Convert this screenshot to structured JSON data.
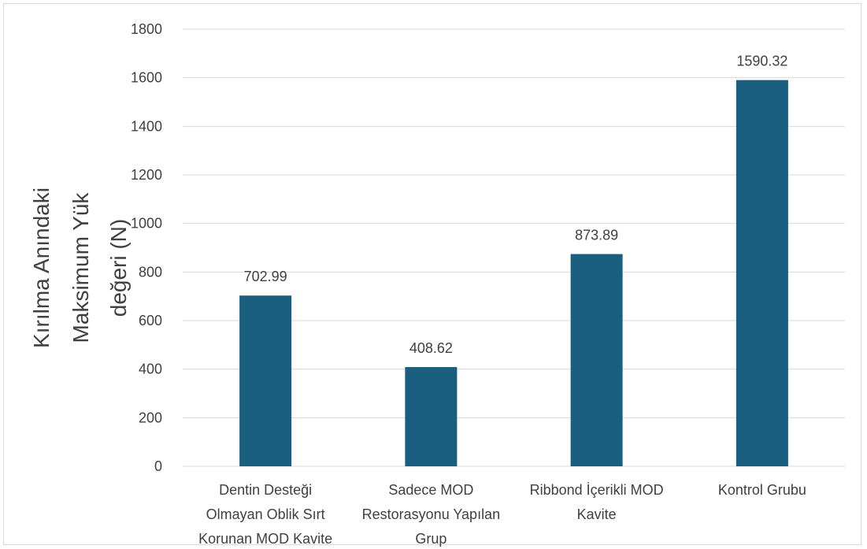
{
  "chart_data": {
    "type": "bar",
    "categories": [
      [
        "Dentin Desteği",
        "Olmayan Oblik Sırt",
        "Korunan MOD Kavite"
      ],
      [
        "Sadece MOD",
        "Restorasyonu Yapılan",
        "Grup"
      ],
      [
        "Ribbond İçerikli MOD",
        "Kavite"
      ],
      [
        "Kontrol Grubu"
      ]
    ],
    "values": [
      702.99,
      408.62,
      873.89,
      1590.32
    ],
    "data_labels": [
      "702.99",
      "408.62",
      "873.89",
      "1590.32"
    ],
    "xlabel": "",
    "ylabel_lines": [
      "Kırılma Anındaki",
      "Maksimum Yük",
      "değeri (N)"
    ],
    "ylim": [
      0,
      1800
    ],
    "yticks": [
      0,
      200,
      400,
      600,
      800,
      1000,
      1200,
      1400,
      1600,
      1800
    ],
    "grid": true,
    "legend": "none",
    "bar_color": "#1a5f80",
    "grid_color": "#d9d9d9"
  }
}
